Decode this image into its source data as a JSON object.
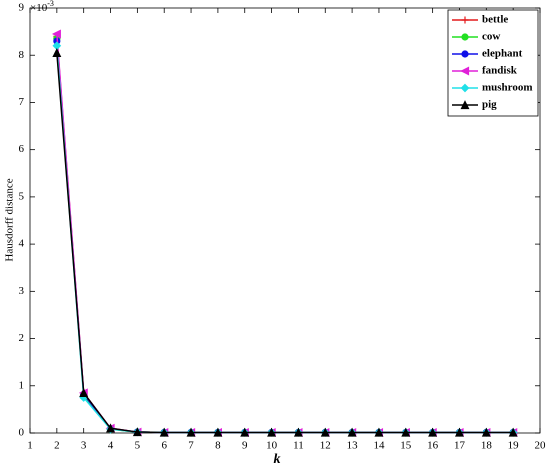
{
  "chart_data": {
    "type": "line",
    "y_label": "Hausdorff distance",
    "x_label": "k",
    "y_multiplier": {
      "base": "×10",
      "exponent": "-3"
    },
    "x": [
      2,
      3,
      4,
      5,
      6,
      7,
      8,
      9,
      10,
      11,
      12,
      13,
      14,
      15,
      16,
      17,
      18,
      19
    ],
    "series": [
      {
        "name": "bettle",
        "color": "#e41a1c",
        "marker": "plus",
        "values": [
          8.4,
          0.85,
          0.1,
          0.02,
          0.01,
          0.01,
          0.01,
          0.01,
          0.01,
          0.01,
          0.01,
          0.01,
          0.01,
          0.01,
          0.01,
          0.01,
          0.01,
          0.01
        ]
      },
      {
        "name": "cow",
        "color": "#22e022",
        "marker": "circle",
        "values": [
          8.35,
          0.8,
          0.08,
          0.02,
          0.01,
          0.01,
          0.01,
          0.01,
          0.01,
          0.01,
          0.01,
          0.01,
          0.01,
          0.01,
          0.01,
          0.01,
          0.01,
          0.01
        ]
      },
      {
        "name": "elephant",
        "color": "#1010e8",
        "marker": "circle",
        "values": [
          8.3,
          0.82,
          0.09,
          0.02,
          0.01,
          0.01,
          0.01,
          0.01,
          0.01,
          0.01,
          0.01,
          0.01,
          0.01,
          0.01,
          0.01,
          0.01,
          0.01,
          0.01
        ]
      },
      {
        "name": "fandisk",
        "color": "#e020d8",
        "marker": "triangle-left",
        "values": [
          8.45,
          0.85,
          0.1,
          0.02,
          0.01,
          0.01,
          0.01,
          0.01,
          0.01,
          0.01,
          0.01,
          0.01,
          0.01,
          0.01,
          0.01,
          0.01,
          0.01,
          0.01
        ]
      },
      {
        "name": "mushroom",
        "color": "#20e0e8",
        "marker": "diamond",
        "values": [
          8.2,
          0.75,
          0.08,
          0.02,
          0.01,
          0.01,
          0.01,
          0.01,
          0.01,
          0.01,
          0.01,
          0.01,
          0.01,
          0.01,
          0.01,
          0.01,
          0.01,
          0.01
        ]
      },
      {
        "name": "pig",
        "color": "#000000",
        "marker": "triangle-up",
        "values": [
          8.05,
          0.85,
          0.1,
          0.02,
          0.01,
          0.01,
          0.01,
          0.01,
          0.01,
          0.01,
          0.01,
          0.01,
          0.01,
          0.01,
          0.01,
          0.01,
          0.01,
          0.01
        ]
      }
    ],
    "xlim": [
      1,
      20
    ],
    "xticks": [
      1,
      2,
      3,
      4,
      5,
      6,
      7,
      8,
      9,
      10,
      11,
      12,
      13,
      14,
      15,
      16,
      17,
      18,
      19,
      20
    ],
    "ylim": [
      0,
      9
    ],
    "yticks": [
      0,
      1,
      2,
      3,
      4,
      5,
      6,
      7,
      8,
      9
    ],
    "legend": "top-right",
    "grid": false
  }
}
